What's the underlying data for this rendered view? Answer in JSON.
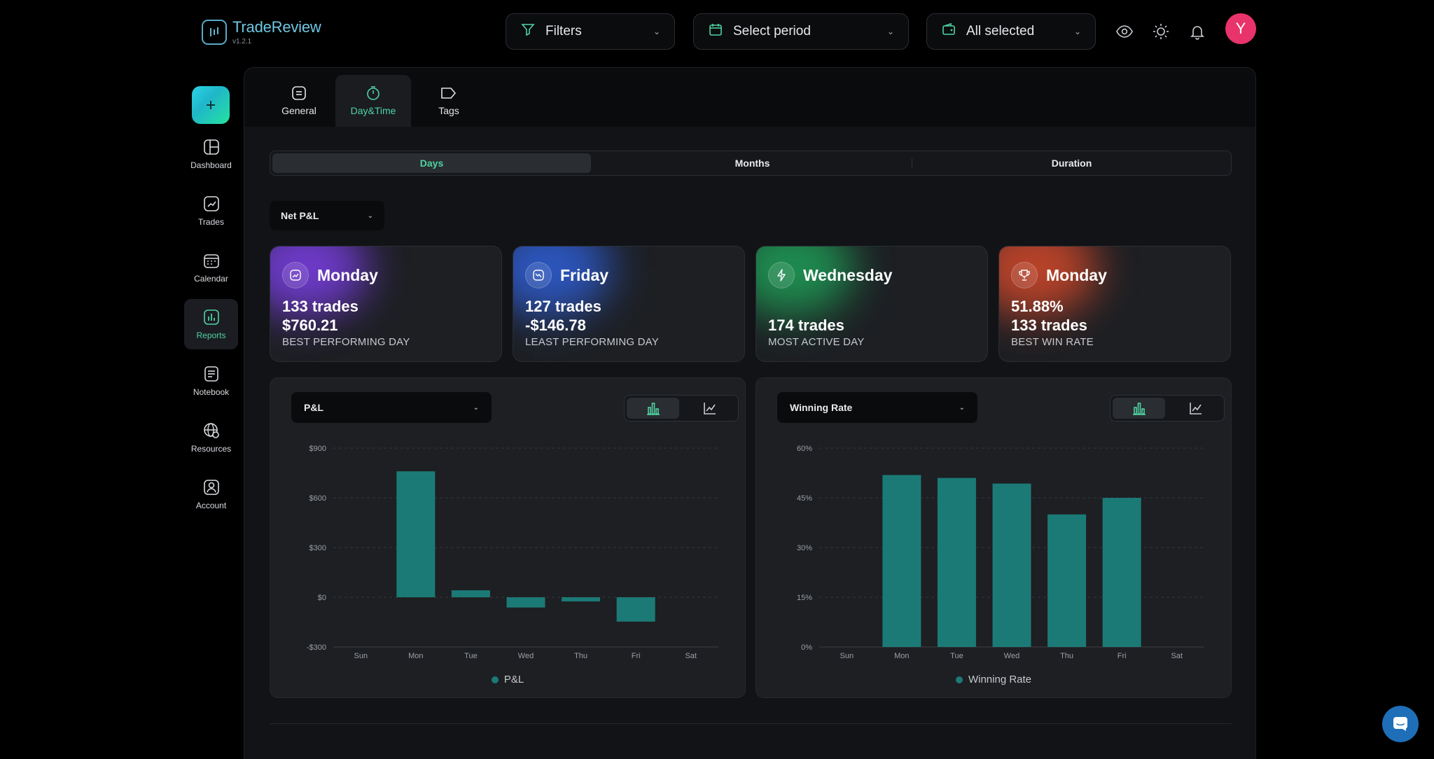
{
  "app": {
    "name": "TradeReview",
    "version": "v1.2.1"
  },
  "header": {
    "filters_label": "Filters",
    "period_label": "Select period",
    "accounts_label": "All selected",
    "avatar_initial": "Y"
  },
  "sidebar": {
    "items": [
      {
        "label": "Dashboard",
        "icon": "dashboard-icon"
      },
      {
        "label": "Trades",
        "icon": "trades-icon"
      },
      {
        "label": "Calendar",
        "icon": "calendar-icon"
      },
      {
        "label": "Reports",
        "icon": "reports-icon",
        "active": true
      },
      {
        "label": "Notebook",
        "icon": "notebook-icon"
      },
      {
        "label": "Resources",
        "icon": "resources-icon"
      },
      {
        "label": "Account",
        "icon": "account-icon"
      }
    ]
  },
  "tabs": [
    {
      "label": "General"
    },
    {
      "label": "Day&Time",
      "active": true
    },
    {
      "label": "Tags"
    }
  ],
  "segments": [
    {
      "label": "Days",
      "active": true
    },
    {
      "label": "Months"
    },
    {
      "label": "Duration"
    }
  ],
  "metric_select": {
    "value": "Net P&L"
  },
  "cards": [
    {
      "day": "Monday",
      "line1": "133 trades",
      "line2": "$760.21",
      "label": "BEST PERFORMING DAY",
      "glow": "#7b3fe4",
      "icon": "trend-up-icon"
    },
    {
      "day": "Friday",
      "line1": "127 trades",
      "line2": "-$146.78",
      "label": "LEAST PERFORMING DAY",
      "glow": "#2f5fd6",
      "icon": "trend-down-icon"
    },
    {
      "day": "Wednesday",
      "line1": "",
      "line2": "174 trades",
      "label": "MOST ACTIVE DAY",
      "glow": "#1f9e57",
      "icon": "lightning-icon"
    },
    {
      "day": "Monday",
      "line1": "51.88%",
      "line2": "133 trades",
      "label": "BEST WIN RATE",
      "glow": "#d3492b",
      "icon": "trophy-icon"
    }
  ],
  "charts": [
    {
      "select": "P&L",
      "legend": "P&L"
    },
    {
      "select": "Winning Rate",
      "legend": "Winning Rate"
    }
  ],
  "chart_data": [
    {
      "type": "bar",
      "categories": [
        "Sun",
        "Mon",
        "Tue",
        "Wed",
        "Thu",
        "Fri",
        "Sat"
      ],
      "series": [
        {
          "name": "P&L",
          "values": [
            0,
            760,
            42,
            -62,
            -25,
            -147,
            0
          ]
        }
      ],
      "ylim": [
        -300,
        900
      ],
      "yticks": [
        900,
        600,
        300,
        0,
        -300
      ],
      "ytick_labels": [
        "$900",
        "$600",
        "$300",
        "$0",
        "-$300"
      ],
      "grid": true,
      "color": "#1b7a76"
    },
    {
      "type": "bar",
      "categories": [
        "Sun",
        "Mon",
        "Tue",
        "Wed",
        "Thu",
        "Fri",
        "Sat"
      ],
      "series": [
        {
          "name": "Winning Rate",
          "values": [
            0,
            51.88,
            51,
            49.3,
            40,
            45,
            0
          ]
        }
      ],
      "ylim": [
        0,
        60
      ],
      "yticks": [
        60,
        45,
        30,
        15,
        0
      ],
      "ytick_labels": [
        "60%",
        "45%",
        "30%",
        "15%",
        "0%"
      ],
      "grid": true,
      "color": "#1b7a76"
    }
  ]
}
